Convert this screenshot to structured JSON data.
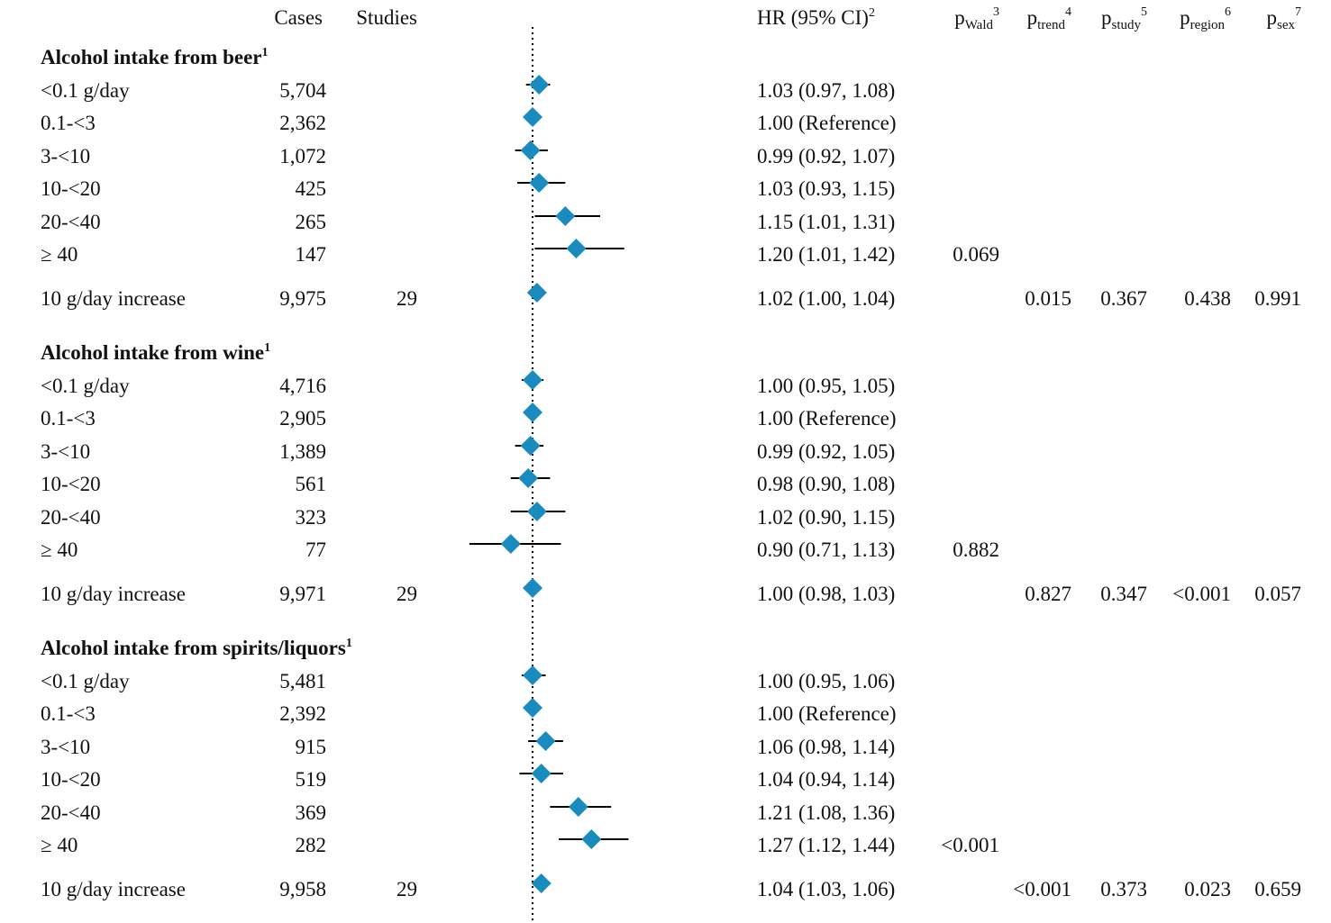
{
  "header": {
    "cases": "Cases",
    "studies": "Studies",
    "hr": "HR (95% CI)",
    "hr_sup": "2",
    "p_cols": [
      {
        "p": "p",
        "sub": "Wald",
        "sup": "3"
      },
      {
        "p": "p",
        "sub": "trend",
        "sup": "4"
      },
      {
        "p": "p",
        "sub": "study",
        "sup": "5"
      },
      {
        "p": "p",
        "sub": "region",
        "sup": "6"
      },
      {
        "p": "p",
        "sub": "sex",
        "sup": "7"
      }
    ]
  },
  "colors": {
    "marker": "#1a8bbf",
    "line": "#000000",
    "reference_line": "#000000"
  },
  "chart_data": {
    "type": "forest",
    "reference_value": 1.0,
    "sections": [
      {
        "title": "Alcohol intake from beer",
        "title_sup": "1",
        "rows": [
          {
            "label": "<0.1 g/day",
            "cases": "5,704",
            "studies": "",
            "hr": 1.03,
            "lo": 0.97,
            "hi": 1.08,
            "hr_text": "1.03 (0.97, 1.08)",
            "p_wald": "",
            "p_trend": "",
            "p_study": "",
            "p_region": "",
            "p_sex": ""
          },
          {
            "label": "0.1-<3",
            "cases": "2,362",
            "studies": "",
            "hr": 1.0,
            "lo": 1.0,
            "hi": 1.0,
            "hr_text": "1.00 (Reference)",
            "p_wald": "",
            "p_trend": "",
            "p_study": "",
            "p_region": "",
            "p_sex": ""
          },
          {
            "label": "3-<10",
            "cases": "1,072",
            "studies": "",
            "hr": 0.99,
            "lo": 0.92,
            "hi": 1.07,
            "hr_text": "0.99 (0.92, 1.07)",
            "p_wald": "",
            "p_trend": "",
            "p_study": "",
            "p_region": "",
            "p_sex": ""
          },
          {
            "label": "10-<20",
            "cases": "425",
            "studies": "",
            "hr": 1.03,
            "lo": 0.93,
            "hi": 1.15,
            "hr_text": "1.03 (0.93, 1.15)",
            "p_wald": "",
            "p_trend": "",
            "p_study": "",
            "p_region": "",
            "p_sex": ""
          },
          {
            "label": "20-<40",
            "cases": "265",
            "studies": "",
            "hr": 1.15,
            "lo": 1.01,
            "hi": 1.31,
            "hr_text": "1.15 (1.01, 1.31)",
            "p_wald": "",
            "p_trend": "",
            "p_study": "",
            "p_region": "",
            "p_sex": ""
          },
          {
            "label": "≥ 40",
            "cases": "147",
            "studies": "",
            "hr": 1.2,
            "lo": 1.01,
            "hi": 1.42,
            "hr_text": "1.20 (1.01, 1.42)",
            "p_wald": "0.069",
            "p_trend": "",
            "p_study": "",
            "p_region": "",
            "p_sex": ""
          },
          {
            "label": "10 g/day increase",
            "cases": "9,975",
            "studies": "29",
            "hr": 1.02,
            "lo": 1.0,
            "hi": 1.04,
            "hr_text": "1.02 (1.00, 1.04)",
            "p_wald": "",
            "p_trend": "0.015",
            "p_study": "0.367",
            "p_region": "0.438",
            "p_sex": "0.991"
          }
        ]
      },
      {
        "title": "Alcohol intake from wine",
        "title_sup": "1",
        "rows": [
          {
            "label": "<0.1 g/day",
            "cases": "4,716",
            "studies": "",
            "hr": 1.0,
            "lo": 0.95,
            "hi": 1.05,
            "hr_text": "1.00 (0.95, 1.05)",
            "p_wald": "",
            "p_trend": "",
            "p_study": "",
            "p_region": "",
            "p_sex": ""
          },
          {
            "label": "0.1-<3",
            "cases": "2,905",
            "studies": "",
            "hr": 1.0,
            "lo": 1.0,
            "hi": 1.0,
            "hr_text": "1.00 (Reference)",
            "p_wald": "",
            "p_trend": "",
            "p_study": "",
            "p_region": "",
            "p_sex": ""
          },
          {
            "label": "3-<10",
            "cases": "1,389",
            "studies": "",
            "hr": 0.99,
            "lo": 0.92,
            "hi": 1.05,
            "hr_text": "0.99 (0.92, 1.05)",
            "p_wald": "",
            "p_trend": "",
            "p_study": "",
            "p_region": "",
            "p_sex": ""
          },
          {
            "label": "10-<20",
            "cases": "561",
            "studies": "",
            "hr": 0.98,
            "lo": 0.9,
            "hi": 1.08,
            "hr_text": "0.98 (0.90, 1.08)",
            "p_wald": "",
            "p_trend": "",
            "p_study": "",
            "p_region": "",
            "p_sex": ""
          },
          {
            "label": "20-<40",
            "cases": "323",
            "studies": "",
            "hr": 1.02,
            "lo": 0.9,
            "hi": 1.15,
            "hr_text": "1.02 (0.90, 1.15)",
            "p_wald": "",
            "p_trend": "",
            "p_study": "",
            "p_region": "",
            "p_sex": ""
          },
          {
            "label": "≥ 40",
            "cases": "77",
            "studies": "",
            "hr": 0.9,
            "lo": 0.71,
            "hi": 1.13,
            "hr_text": "0.90 (0.71, 1.13)",
            "p_wald": "0.882",
            "p_trend": "",
            "p_study": "",
            "p_region": "",
            "p_sex": ""
          },
          {
            "label": "10 g/day increase",
            "cases": "9,971",
            "studies": "29",
            "hr": 1.0,
            "lo": 0.98,
            "hi": 1.03,
            "hr_text": "1.00 (0.98, 1.03)",
            "p_wald": "",
            "p_trend": "0.827",
            "p_study": "0.347",
            "p_region": "<0.001",
            "p_sex": "0.057"
          }
        ]
      },
      {
        "title": "Alcohol intake from spirits/liquors",
        "title_sup": "1",
        "rows": [
          {
            "label": "<0.1 g/day",
            "cases": "5,481",
            "studies": "",
            "hr": 1.0,
            "lo": 0.95,
            "hi": 1.06,
            "hr_text": "1.00 (0.95, 1.06)",
            "p_wald": "",
            "p_trend": "",
            "p_study": "",
            "p_region": "",
            "p_sex": ""
          },
          {
            "label": "0.1-<3",
            "cases": "2,392",
            "studies": "",
            "hr": 1.0,
            "lo": 1.0,
            "hi": 1.0,
            "hr_text": "1.00 (Reference)",
            "p_wald": "",
            "p_trend": "",
            "p_study": "",
            "p_region": "",
            "p_sex": ""
          },
          {
            "label": "3-<10",
            "cases": "915",
            "studies": "",
            "hr": 1.06,
            "lo": 0.98,
            "hi": 1.14,
            "hr_text": "1.06 (0.98, 1.14)",
            "p_wald": "",
            "p_trend": "",
            "p_study": "",
            "p_region": "",
            "p_sex": ""
          },
          {
            "label": "10-<20",
            "cases": "519",
            "studies": "",
            "hr": 1.04,
            "lo": 0.94,
            "hi": 1.14,
            "hr_text": "1.04 (0.94, 1.14)",
            "p_wald": "",
            "p_trend": "",
            "p_study": "",
            "p_region": "",
            "p_sex": ""
          },
          {
            "label": "20-<40",
            "cases": "369",
            "studies": "",
            "hr": 1.21,
            "lo": 1.08,
            "hi": 1.36,
            "hr_text": "1.21 (1.08, 1.36)",
            "p_wald": "",
            "p_trend": "",
            "p_study": "",
            "p_region": "",
            "p_sex": ""
          },
          {
            "label": "≥ 40",
            "cases": "282",
            "studies": "",
            "hr": 1.27,
            "lo": 1.12,
            "hi": 1.44,
            "hr_text": "1.27 (1.12, 1.44)",
            "p_wald": "<0.001",
            "p_trend": "",
            "p_study": "",
            "p_region": "",
            "p_sex": ""
          },
          {
            "label": "10 g/day increase",
            "cases": "9,958",
            "studies": "29",
            "hr": 1.04,
            "lo": 1.03,
            "hi": 1.06,
            "hr_text": "1.04 (1.03, 1.06)",
            "p_wald": "",
            "p_trend": "<0.001",
            "p_study": "0.373",
            "p_region": "0.023",
            "p_sex": "0.659"
          }
        ]
      }
    ]
  }
}
